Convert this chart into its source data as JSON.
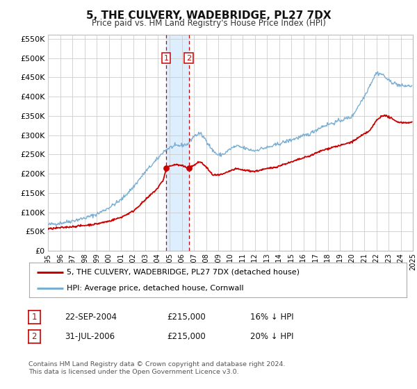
{
  "title": "5, THE CULVERY, WADEBRIDGE, PL27 7DX",
  "subtitle": "Price paid vs. HM Land Registry's House Price Index (HPI)",
  "legend_line1": "5, THE CULVERY, WADEBRIDGE, PL27 7DX (detached house)",
  "legend_line2": "HPI: Average price, detached house, Cornwall",
  "footnote1": "Contains HM Land Registry data © Crown copyright and database right 2024.",
  "footnote2": "This data is licensed under the Open Government Licence v3.0.",
  "event1_label": "1",
  "event1_date": "22-SEP-2004",
  "event1_price": "£215,000",
  "event1_hpi": "16% ↓ HPI",
  "event2_label": "2",
  "event2_date": "31-JUL-2006",
  "event2_price": "£215,000",
  "event2_hpi": "20% ↓ HPI",
  "event1_x": 2004.72,
  "event2_x": 2006.58,
  "event1_y": 215000,
  "event2_y": 215000,
  "shade_x1": 2004.72,
  "shade_x2": 2006.58,
  "red_color": "#cc0000",
  "blue_color": "#7aafd4",
  "shade_color": "#ddeeff",
  "grid_color": "#cccccc",
  "background_color": "#ffffff",
  "ylim": [
    0,
    560000
  ],
  "xlim": [
    1995,
    2025
  ],
  "yticks": [
    0,
    50000,
    100000,
    150000,
    200000,
    250000,
    300000,
    350000,
    400000,
    450000,
    500000,
    550000
  ],
  "xticks": [
    1995,
    1996,
    1997,
    1998,
    1999,
    2000,
    2001,
    2002,
    2003,
    2004,
    2005,
    2006,
    2007,
    2008,
    2009,
    2010,
    2011,
    2012,
    2013,
    2014,
    2015,
    2016,
    2017,
    2018,
    2019,
    2020,
    2021,
    2022,
    2023,
    2024,
    2025
  ]
}
